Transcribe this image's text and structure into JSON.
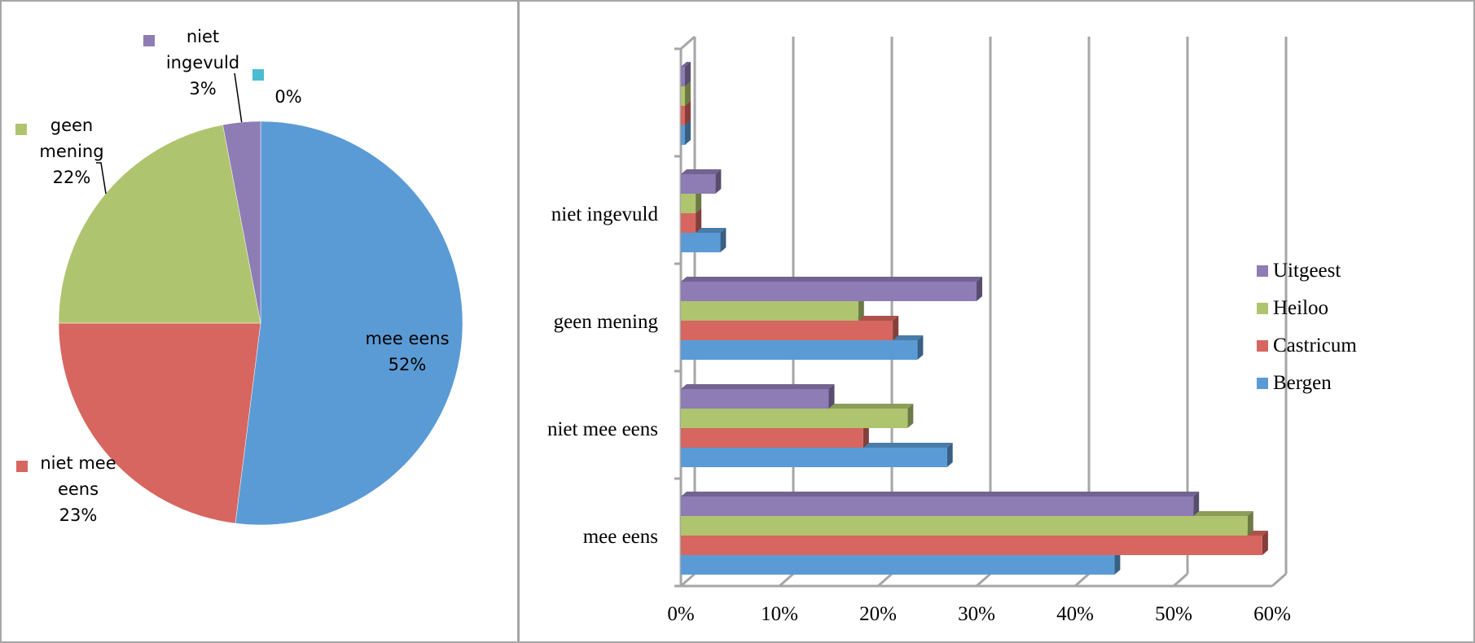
{
  "chart_data": [
    {
      "type": "pie",
      "slices": [
        {
          "label": "mee eens",
          "value": 52,
          "value_label": "52%",
          "color": "#5b9bd5",
          "label_lines": [
            "mee eens",
            "52%"
          ]
        },
        {
          "label": "niet mee eens",
          "value": 23,
          "value_label": "23%",
          "color": "#d6665f",
          "label_lines": [
            "niet mee",
            "eens",
            "23%"
          ]
        },
        {
          "label": "geen mening",
          "value": 22,
          "value_label": "22%",
          "color": "#afc46e",
          "label_lines": [
            "geen",
            "mening",
            "22%"
          ]
        },
        {
          "label": "niet ingevuld",
          "value": 3,
          "value_label": "3%",
          "color": "#8e7cb5",
          "label_lines": [
            "niet",
            "ingevuld",
            "3%"
          ]
        },
        {
          "label": "",
          "value": 0,
          "value_label": "0%",
          "color": "#4bbcd1",
          "label_lines": [
            "0%"
          ]
        }
      ]
    },
    {
      "type": "bar",
      "orientation": "horizontal",
      "style": "3d",
      "categories": [
        "mee eens",
        "niet mee eens",
        "geen mening",
        "niet ingevuld",
        ""
      ],
      "series": [
        {
          "name": "Bergen",
          "color": "#5b9bd5",
          "values": [
            44,
            27,
            24,
            4,
            0
          ]
        },
        {
          "name": "Castricum",
          "color": "#d6665f",
          "values": [
            59,
            18.5,
            21.5,
            1.5,
            0
          ]
        },
        {
          "name": "Heiloo",
          "color": "#afc46e",
          "values": [
            57.5,
            23,
            18,
            1.5,
            0
          ]
        },
        {
          "name": "Uitgeest",
          "color": "#8e7cb5",
          "values": [
            52,
            15,
            30,
            3.5,
            0
          ]
        }
      ],
      "x_ticks": [
        "0%",
        "10%",
        "20%",
        "30%",
        "40%",
        "50%",
        "60%"
      ],
      "xlim": [
        0,
        60
      ],
      "grid": true,
      "legend_position": "right"
    }
  ]
}
